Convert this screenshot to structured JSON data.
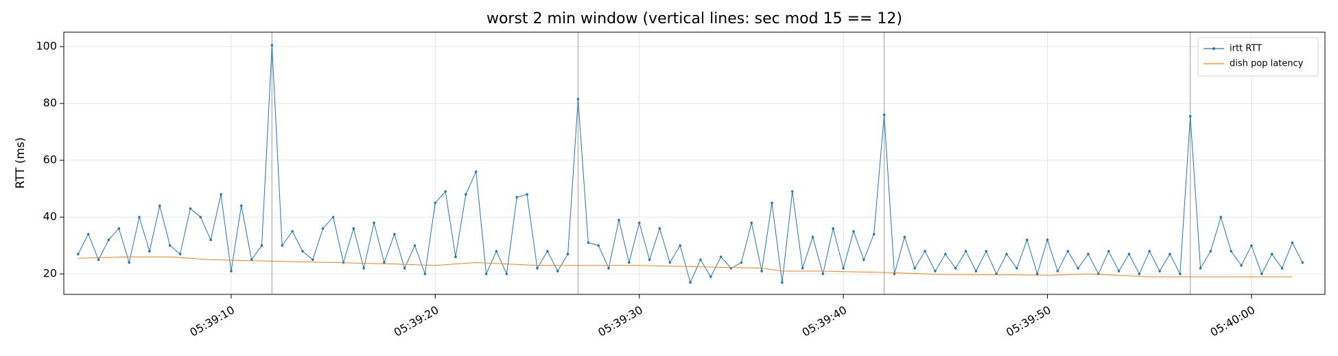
{
  "chart_data": {
    "type": "line",
    "title": "worst 2 min window (vertical lines: sec mod 15 == 12)",
    "y_label": "RTT (ms)",
    "xlim": [
      1.8,
      63.6
    ],
    "ylim": [
      12.8,
      105.1
    ],
    "xticks": [
      {
        "value": 10,
        "label": "05:39:10"
      },
      {
        "value": 20,
        "label": "05:39:20"
      },
      {
        "value": 30,
        "label": "05:39:30"
      },
      {
        "value": 40,
        "label": "05:39:40"
      },
      {
        "value": 50,
        "label": "05:39:50"
      },
      {
        "value": 60,
        "label": "05:40:00"
      }
    ],
    "yticks": [
      20,
      40,
      60,
      80,
      100
    ],
    "vlines": [
      12,
      27,
      42,
      57
    ],
    "grid": true,
    "legend": "upper-right",
    "series": [
      {
        "name": "irtt RTT",
        "color": "#1f77b4",
        "marker": true,
        "x": [
          2.5,
          3,
          3.5,
          4,
          4.5,
          5,
          5.5,
          6,
          6.5,
          7,
          7.5,
          8,
          8.5,
          9,
          9.5,
          10,
          10.5,
          11,
          11.5,
          12,
          12.5,
          13,
          13.5,
          14,
          14.5,
          15,
          15.5,
          16,
          16.5,
          17,
          17.5,
          18,
          18.5,
          19,
          19.5,
          20,
          20.5,
          21,
          21.5,
          22,
          22.5,
          23,
          23.5,
          24,
          24.5,
          25,
          25.5,
          26,
          26.5,
          27,
          27.5,
          28,
          28.5,
          29,
          29.5,
          30,
          30.5,
          31,
          31.5,
          32,
          32.5,
          33,
          33.5,
          34,
          34.5,
          35,
          35.5,
          36,
          36.5,
          37,
          37.5,
          38,
          38.5,
          39,
          39.5,
          40,
          40.5,
          41,
          41.5,
          42,
          42.5,
          43,
          43.5,
          44,
          44.5,
          45,
          45.5,
          46,
          46.5,
          47,
          47.5,
          48,
          48.5,
          49,
          49.5,
          50,
          50.5,
          51,
          51.5,
          52,
          52.5,
          53,
          53.5,
          54,
          54.5,
          55,
          55.5,
          56,
          56.5,
          57,
          57.5,
          58,
          58.5,
          59,
          59.5,
          60,
          60.5,
          61,
          61.5,
          62,
          62.5
        ],
        "values": [
          27,
          34,
          25,
          32,
          36,
          24,
          40,
          28,
          44,
          30,
          27,
          43,
          40,
          32,
          48,
          21,
          44,
          25,
          30,
          100.5,
          30,
          35,
          28,
          25,
          36,
          40,
          24,
          36,
          22,
          38,
          24,
          34,
          22,
          30,
          20,
          45,
          49,
          26,
          48,
          56,
          20,
          28,
          20,
          47,
          48,
          22,
          28,
          21,
          27,
          81.5,
          31,
          30,
          22,
          39,
          24,
          38,
          25,
          36,
          24,
          30,
          17,
          25,
          19,
          26,
          22,
          24,
          38,
          21,
          45,
          17,
          49,
          22,
          33,
          20,
          36,
          22,
          35,
          25,
          34,
          76,
          20,
          33,
          22,
          28,
          21,
          27,
          22,
          28,
          21,
          28,
          20,
          27,
          22,
          32,
          20,
          32,
          21,
          28,
          22,
          27,
          20,
          28,
          21,
          27,
          20,
          28,
          21,
          27,
          20,
          75.5,
          22,
          28,
          40,
          28,
          23,
          30,
          20,
          27,
          22,
          31,
          24
        ]
      },
      {
        "name": "dish pop latency",
        "color": "#ff7f0e",
        "marker": false,
        "x": [
          2.5,
          5,
          7,
          9,
          12,
          15,
          18,
          20,
          22,
          25,
          28,
          30,
          33,
          36,
          37,
          39,
          42,
          45,
          48,
          50,
          52,
          55,
          58,
          60,
          62
        ],
        "values": [
          25.5,
          26,
          26,
          25,
          24.5,
          24,
          23.5,
          23,
          24,
          23,
          23,
          23,
          22.5,
          22,
          21,
          21,
          20.5,
          19.8,
          19.7,
          19.5,
          20,
          19,
          19,
          19,
          19
        ]
      }
    ]
  }
}
